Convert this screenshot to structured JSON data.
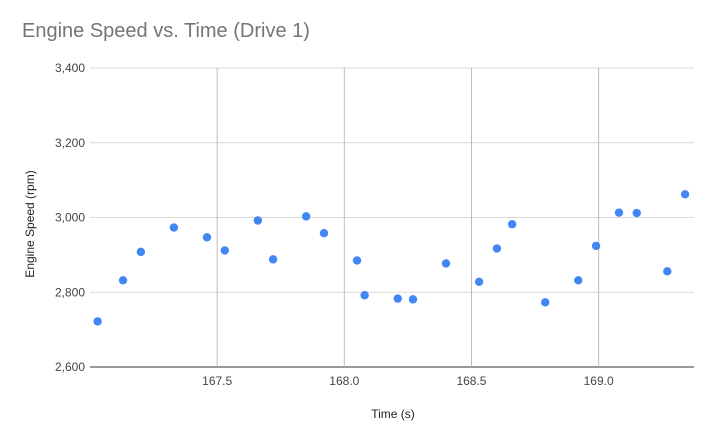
{
  "chart_data": {
    "type": "scatter",
    "title": "Engine Speed vs. Time (Drive 1)",
    "xlabel": "Time (s)",
    "ylabel": "Engine Speed (rpm)",
    "xlim": [
      167.0,
      169.375
    ],
    "ylim": [
      2600,
      3400
    ],
    "x_ticks": [
      167.5,
      168.0,
      168.5,
      169.0
    ],
    "x_tick_labels": [
      "167.5",
      "168.0",
      "168.5",
      "169.0"
    ],
    "y_ticks": [
      2600,
      2800,
      3000,
      3200,
      3400
    ],
    "y_tick_labels": [
      "2,600",
      "2,800",
      "3,000",
      "3,200",
      "3,400"
    ],
    "grid": true,
    "legend": "none",
    "color": "#4285f4",
    "series": [
      {
        "points": [
          {
            "x": 167.03,
            "y": 2722
          },
          {
            "x": 167.13,
            "y": 2832
          },
          {
            "x": 167.2,
            "y": 2908
          },
          {
            "x": 167.33,
            "y": 2973
          },
          {
            "x": 167.46,
            "y": 2947
          },
          {
            "x": 167.53,
            "y": 2912
          },
          {
            "x": 167.66,
            "y": 2992
          },
          {
            "x": 167.72,
            "y": 2888
          },
          {
            "x": 167.85,
            "y": 3003
          },
          {
            "x": 167.92,
            "y": 2958
          },
          {
            "x": 168.05,
            "y": 2885
          },
          {
            "x": 168.08,
            "y": 2792
          },
          {
            "x": 168.21,
            "y": 2783
          },
          {
            "x": 168.27,
            "y": 2781
          },
          {
            "x": 168.4,
            "y": 2877
          },
          {
            "x": 168.53,
            "y": 2828
          },
          {
            "x": 168.6,
            "y": 2917
          },
          {
            "x": 168.66,
            "y": 2982
          },
          {
            "x": 168.79,
            "y": 2773
          },
          {
            "x": 168.92,
            "y": 2832
          },
          {
            "x": 168.99,
            "y": 2924
          },
          {
            "x": 169.08,
            "y": 3013
          },
          {
            "x": 169.15,
            "y": 3012
          },
          {
            "x": 169.27,
            "y": 2856
          },
          {
            "x": 169.34,
            "y": 3062
          }
        ]
      }
    ]
  }
}
